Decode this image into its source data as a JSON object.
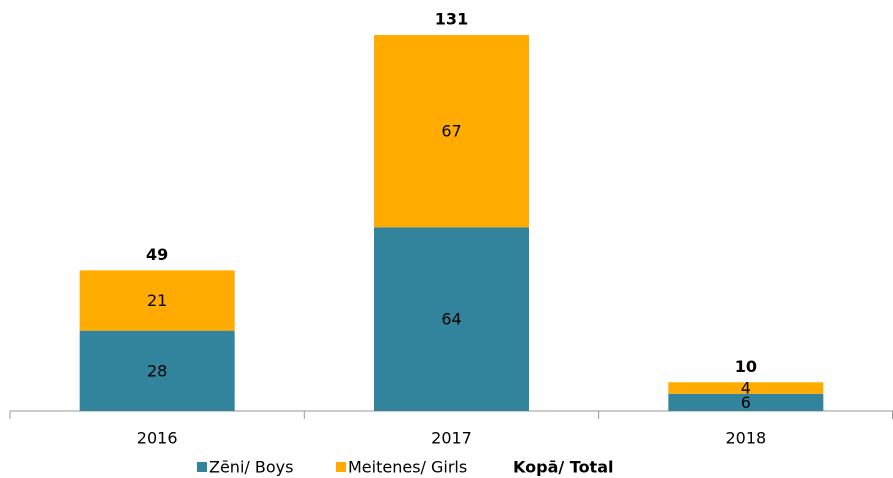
{
  "chart_data": {
    "type": "stacked_bar",
    "categories": [
      "2016",
      "2017",
      "2018"
    ],
    "series": [
      {
        "name": "Zēni/ Boys",
        "color": "#31849b",
        "values": [
          28,
          64,
          6
        ]
      },
      {
        "name": "Meitenes/ Girls",
        "color": "#ffab00",
        "values": [
          21,
          67,
          4
        ]
      },
      {
        "name": "Kopā/ Total",
        "values": [
          49,
          131,
          10
        ]
      }
    ]
  }
}
